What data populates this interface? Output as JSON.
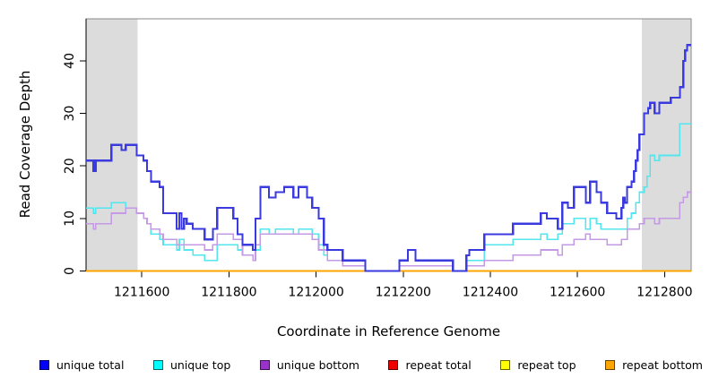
{
  "figure": {
    "xlabel": "Coordinate in Reference Genome",
    "ylabel": "Read Coverage Depth"
  },
  "chart_data": {
    "type": "line",
    "subtype": "step",
    "title": "",
    "xlabel": "Coordinate in Reference Genome",
    "ylabel": "Read Coverage Depth",
    "xlim": [
      1211472,
      1212861
    ],
    "ylim": [
      0,
      48
    ],
    "x_ticks": [
      1211600,
      1211800,
      1212000,
      1212200,
      1212400,
      1212600,
      1212800
    ],
    "y_ticks": [
      0,
      10,
      20,
      30,
      40
    ],
    "grid": false,
    "legend_position": "bottom",
    "frame_color": "#8a8a8a",
    "shaded_regions": [
      {
        "name": "repeat-region-left",
        "from": 1211472,
        "to": 1211590,
        "color": "#DCDCDC"
      },
      {
        "name": "repeat-region-right",
        "from": 1212748,
        "to": 1212861,
        "color": "#DCDCDC"
      }
    ],
    "series": [
      {
        "name": "repeat total",
        "color": "#EE0000",
        "width": 1.5,
        "points": [
          [
            1211472,
            0
          ]
        ]
      },
      {
        "name": "repeat top",
        "color": "#FFFF00",
        "width": 1.5,
        "points": [
          [
            1211472,
            0
          ]
        ]
      },
      {
        "name": "repeat bottom",
        "color": "#FFA500",
        "width": 1.8,
        "points": [
          [
            1211472,
            0
          ]
        ]
      },
      {
        "name": "unique top",
        "color": "#52E6EE",
        "width": 1.6,
        "points": [
          [
            1211472,
            12
          ],
          [
            1211489,
            11
          ],
          [
            1211494,
            12
          ],
          [
            1211530,
            13
          ],
          [
            1211563,
            12
          ],
          [
            1211588,
            11
          ],
          [
            1211604,
            10
          ],
          [
            1211612,
            9
          ],
          [
            1211621,
            7
          ],
          [
            1211641,
            6
          ],
          [
            1211649,
            5
          ],
          [
            1211680,
            4
          ],
          [
            1211686,
            6
          ],
          [
            1211697,
            4
          ],
          [
            1211717,
            3
          ],
          [
            1211744,
            2
          ],
          [
            1211773,
            5
          ],
          [
            1211820,
            4
          ],
          [
            1211831,
            3
          ],
          [
            1211855,
            2
          ],
          [
            1211861,
            4
          ],
          [
            1211872,
            8
          ],
          [
            1211892,
            7
          ],
          [
            1211907,
            8
          ],
          [
            1211948,
            7
          ],
          [
            1211960,
            8
          ],
          [
            1211991,
            7
          ],
          [
            1212006,
            5
          ],
          [
            1212018,
            3
          ],
          [
            1212026,
            2
          ],
          [
            1212061,
            1
          ],
          [
            1212113,
            0
          ],
          [
            1212191,
            1
          ],
          [
            1212228,
            1
          ],
          [
            1212314,
            0
          ],
          [
            1212345,
            2
          ],
          [
            1212386,
            5
          ],
          [
            1212452,
            6
          ],
          [
            1212516,
            7
          ],
          [
            1212530,
            6
          ],
          [
            1212555,
            7
          ],
          [
            1212565,
            9
          ],
          [
            1212592,
            10
          ],
          [
            1212619,
            8
          ],
          [
            1212629,
            10
          ],
          [
            1212644,
            9
          ],
          [
            1212654,
            8
          ],
          [
            1212689,
            8
          ],
          [
            1212714,
            10
          ],
          [
            1212724,
            11
          ],
          [
            1212734,
            13
          ],
          [
            1212742,
            15
          ],
          [
            1212753,
            16
          ],
          [
            1212760,
            18
          ],
          [
            1212767,
            22
          ],
          [
            1212777,
            21
          ],
          [
            1212788,
            22
          ],
          [
            1212835,
            28
          ]
        ]
      },
      {
        "name": "unique bottom",
        "color": "#C49AE4",
        "width": 1.6,
        "points": [
          [
            1211472,
            9
          ],
          [
            1211489,
            8
          ],
          [
            1211494,
            9
          ],
          [
            1211530,
            11
          ],
          [
            1211563,
            12
          ],
          [
            1211588,
            11
          ],
          [
            1211604,
            10
          ],
          [
            1211612,
            9
          ],
          [
            1211621,
            8
          ],
          [
            1211641,
            7
          ],
          [
            1211649,
            6
          ],
          [
            1211680,
            5
          ],
          [
            1211717,
            5
          ],
          [
            1211744,
            4
          ],
          [
            1211763,
            5
          ],
          [
            1211773,
            7
          ],
          [
            1211810,
            6
          ],
          [
            1211831,
            3
          ],
          [
            1211855,
            2
          ],
          [
            1211861,
            5
          ],
          [
            1211872,
            7
          ],
          [
            1211948,
            7
          ],
          [
            1211991,
            6
          ],
          [
            1212006,
            4
          ],
          [
            1212026,
            2
          ],
          [
            1212061,
            1
          ],
          [
            1212113,
            0
          ],
          [
            1212191,
            1
          ],
          [
            1212228,
            1
          ],
          [
            1212314,
            0
          ],
          [
            1212345,
            1
          ],
          [
            1212386,
            2
          ],
          [
            1212452,
            3
          ],
          [
            1212516,
            4
          ],
          [
            1212555,
            3
          ],
          [
            1212565,
            5
          ],
          [
            1212592,
            6
          ],
          [
            1212619,
            7
          ],
          [
            1212629,
            6
          ],
          [
            1212654,
            6
          ],
          [
            1212668,
            5
          ],
          [
            1212689,
            5
          ],
          [
            1212701,
            6
          ],
          [
            1212714,
            8
          ],
          [
            1212742,
            9
          ],
          [
            1212753,
            10
          ],
          [
            1212777,
            9
          ],
          [
            1212788,
            10
          ],
          [
            1212835,
            13
          ],
          [
            1212843,
            14
          ],
          [
            1212852,
            15
          ]
        ]
      },
      {
        "name": "unique total",
        "color": "#3A3ADF",
        "width": 2.2,
        "points": [
          [
            1211472,
            21
          ],
          [
            1211489,
            19
          ],
          [
            1211494,
            21
          ],
          [
            1211530,
            24
          ],
          [
            1211553,
            23
          ],
          [
            1211563,
            24
          ],
          [
            1211588,
            22
          ],
          [
            1211604,
            21
          ],
          [
            1211612,
            19
          ],
          [
            1211621,
            17
          ],
          [
            1211641,
            16
          ],
          [
            1211649,
            11
          ],
          [
            1211680,
            8
          ],
          [
            1211686,
            11
          ],
          [
            1211691,
            8
          ],
          [
            1211697,
            10
          ],
          [
            1211703,
            9
          ],
          [
            1211717,
            8
          ],
          [
            1211744,
            6
          ],
          [
            1211763,
            8
          ],
          [
            1211773,
            12
          ],
          [
            1211810,
            10
          ],
          [
            1211820,
            7
          ],
          [
            1211831,
            5
          ],
          [
            1211855,
            4
          ],
          [
            1211861,
            10
          ],
          [
            1211872,
            16
          ],
          [
            1211892,
            14
          ],
          [
            1211907,
            15
          ],
          [
            1211927,
            16
          ],
          [
            1211948,
            14
          ],
          [
            1211960,
            16
          ],
          [
            1211979,
            14
          ],
          [
            1211991,
            12
          ],
          [
            1212006,
            10
          ],
          [
            1212018,
            5
          ],
          [
            1212026,
            4
          ],
          [
            1212061,
            2
          ],
          [
            1212113,
            0
          ],
          [
            1212191,
            2
          ],
          [
            1212211,
            4
          ],
          [
            1212228,
            2
          ],
          [
            1212314,
            0
          ],
          [
            1212345,
            3
          ],
          [
            1212352,
            4
          ],
          [
            1212386,
            7
          ],
          [
            1212452,
            9
          ],
          [
            1212516,
            11
          ],
          [
            1212530,
            10
          ],
          [
            1212555,
            8
          ],
          [
            1212565,
            13
          ],
          [
            1212578,
            12
          ],
          [
            1212592,
            16
          ],
          [
            1212619,
            13
          ],
          [
            1212629,
            17
          ],
          [
            1212644,
            15
          ],
          [
            1212654,
            13
          ],
          [
            1212668,
            11
          ],
          [
            1212689,
            10
          ],
          [
            1212701,
            12
          ],
          [
            1212705,
            14
          ],
          [
            1212709,
            13
          ],
          [
            1212714,
            16
          ],
          [
            1212724,
            17
          ],
          [
            1212730,
            19
          ],
          [
            1212734,
            21
          ],
          [
            1212738,
            23
          ],
          [
            1212742,
            26
          ],
          [
            1212753,
            30
          ],
          [
            1212762,
            31
          ],
          [
            1212767,
            32
          ],
          [
            1212777,
            30
          ],
          [
            1212788,
            32
          ],
          [
            1212814,
            33
          ],
          [
            1212835,
            35
          ],
          [
            1212843,
            40
          ],
          [
            1212847,
            42
          ],
          [
            1212852,
            43
          ]
        ]
      }
    ],
    "legend": [
      {
        "label": "unique total",
        "color": "#0000FF"
      },
      {
        "label": "unique top",
        "color": "#00FFFF"
      },
      {
        "label": "unique bottom",
        "color": "#9932CC"
      },
      {
        "label": "repeat total",
        "color": "#EE0000"
      },
      {
        "label": "repeat top",
        "color": "#FFFF00"
      },
      {
        "label": "repeat bottom",
        "color": "#FFA500"
      }
    ]
  }
}
